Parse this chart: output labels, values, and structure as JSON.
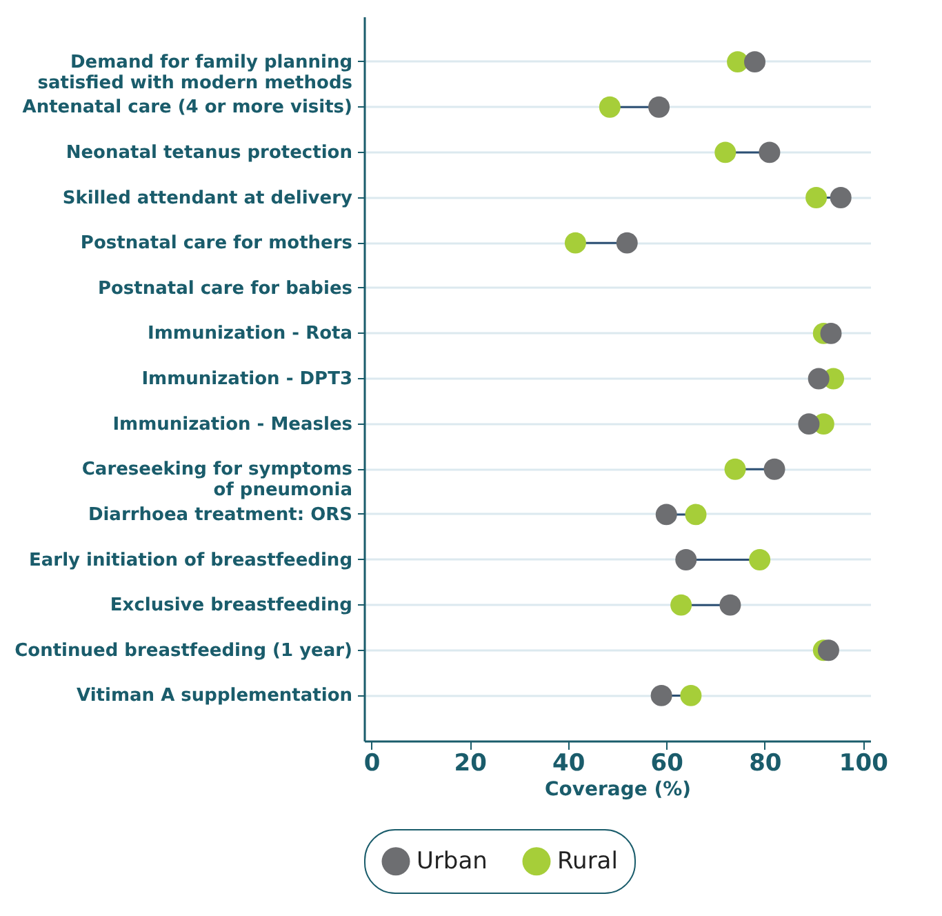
{
  "chart_data": {
    "type": "scatter",
    "orientation": "horizontal",
    "xlabel": "Coverage (%)",
    "categories": [
      "Demand for family planning\nsatisfied with modern methods",
      "Antenatal care (4 or more visits)",
      "Neonatal tetanus protection",
      "Skilled attendant at delivery",
      "Postnatal care for mothers",
      "Postnatal care for babies",
      "Immunization - Rota",
      "Immunization - DPT3",
      "Immunization - Measles",
      "Careseeking for symptoms\nof pneumonia",
      "Diarrhoea treatment: ORS",
      "Early initiation of breastfeeding",
      "Exclusive breastfeeding",
      "Continued breastfeeding (1 year)",
      "Vitiman A supplementation"
    ],
    "series": [
      {
        "name": "Urban",
        "color": "#6d6e71",
        "values": [
          78,
          58.5,
          81,
          95.5,
          52,
          null,
          93.5,
          91,
          89,
          82,
          60,
          64,
          73,
          93,
          59
        ]
      },
      {
        "name": "Rural",
        "color": "#a6ce39",
        "values": [
          74.5,
          48.5,
          72,
          90.5,
          41.5,
          null,
          92,
          94,
          92,
          74,
          66,
          79,
          63,
          92,
          65
        ]
      }
    ],
    "xlim": [
      -1.5,
      101.5
    ],
    "xticks": [
      0,
      20,
      40,
      60,
      80,
      100
    ],
    "grid": "y",
    "legend": "bottom",
    "marker": "circle"
  }
}
